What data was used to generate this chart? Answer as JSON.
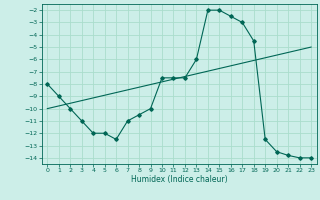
{
  "xlabel": "Humidex (Indice chaleur)",
  "bg_color": "#cceee8",
  "grid_color": "#aaddcc",
  "line_color": "#006655",
  "xlim": [
    -0.5,
    23.5
  ],
  "ylim": [
    -14.5,
    -1.5
  ],
  "xticks": [
    0,
    1,
    2,
    3,
    4,
    5,
    6,
    7,
    8,
    9,
    10,
    11,
    12,
    13,
    14,
    15,
    16,
    17,
    18,
    19,
    20,
    21,
    22,
    23
  ],
  "yticks": [
    -2,
    -3,
    -4,
    -5,
    -6,
    -7,
    -8,
    -9,
    -10,
    -11,
    -12,
    -13,
    -14
  ],
  "data_x": [
    0,
    1,
    2,
    3,
    4,
    5,
    6,
    7,
    8,
    9,
    10,
    11,
    12,
    13,
    14,
    15,
    16,
    17,
    18,
    19,
    20,
    21,
    22,
    23
  ],
  "data_y": [
    -8.0,
    -9.0,
    -10.0,
    -11.0,
    -12.0,
    -12.0,
    -12.5,
    -11.0,
    -10.5,
    -10.0,
    -7.5,
    -7.5,
    -7.5,
    -6.0,
    -2.0,
    -2.0,
    -2.5,
    -3.0,
    -4.5,
    -12.5,
    -13.5,
    -13.8,
    -14.0,
    -14.0
  ],
  "trend_x": [
    0,
    23
  ],
  "trend_y": [
    -10.0,
    -5.0
  ]
}
